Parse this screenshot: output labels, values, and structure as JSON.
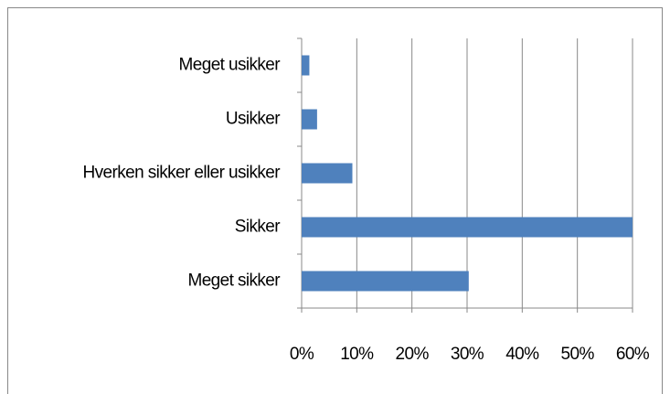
{
  "chart_data": {
    "type": "bar",
    "orientation": "horizontal",
    "categories": [
      "Meget usikker",
      "Usikker",
      "Hverken sikker eller usikker",
      "Sikker",
      "Meget sikker"
    ],
    "values": [
      1.4,
      2.8,
      9.2,
      60,
      30.3
    ],
    "color": "#4f81bd",
    "xlim": [
      0,
      60
    ],
    "xticks": [
      {
        "value": 0,
        "label": "0%"
      },
      {
        "value": 10,
        "label": "10%"
      },
      {
        "value": 20,
        "label": "20%"
      },
      {
        "value": 30,
        "label": "30%"
      },
      {
        "value": 40,
        "label": "40%"
      },
      {
        "value": 50,
        "label": "50%"
      },
      {
        "value": 60,
        "label": "60%"
      }
    ],
    "grid": true
  }
}
